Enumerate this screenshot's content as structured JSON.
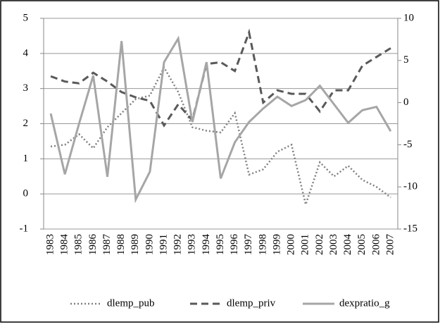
{
  "chart_data": {
    "type": "line",
    "categories": [
      "1983",
      "1984",
      "1985",
      "1986",
      "1987",
      "1988",
      "1989",
      "1990",
      "1991",
      "1992",
      "1993",
      "1994",
      "1995",
      "1996",
      "1997",
      "1998",
      "1999",
      "2000",
      "2001",
      "2002",
      "2003",
      "2004",
      "2005",
      "2006",
      "2007"
    ],
    "series": [
      {
        "name": "dlemp_pub",
        "color": "#808080",
        "dash": "dotted",
        "values": [
          1.35,
          1.4,
          1.7,
          1.3,
          1.9,
          2.3,
          2.7,
          2.8,
          3.6,
          2.9,
          1.9,
          1.8,
          1.75,
          2.3,
          0.55,
          0.7,
          1.2,
          1.4,
          -0.3,
          0.9,
          0.5,
          0.8,
          0.4,
          0.2,
          -0.1
        ]
      },
      {
        "name": "dlemp_priv",
        "color": "#595959",
        "dash": "dashed",
        "values": [
          3.35,
          3.2,
          3.15,
          3.45,
          3.2,
          2.9,
          2.75,
          2.65,
          1.95,
          2.55,
          2.1,
          3.7,
          3.75,
          3.5,
          4.6,
          2.6,
          2.95,
          2.85,
          2.85,
          2.35,
          2.95,
          2.95,
          3.65,
          3.9,
          4.15
        ]
      },
      {
        "name": "dexpratio_g",
        "color": "#a6a6a6",
        "dash": "solid",
        "axis": "y2",
        "values": [
          -1.3,
          -8.5,
          -2.5,
          3.2,
          -8.8,
          7.3,
          -11.5,
          -8.2,
          4.8,
          7.6,
          -2.3,
          4.8,
          -9.0,
          -4.7,
          -2.3,
          -0.7,
          0.7,
          -0.4,
          0.3,
          2.0,
          -0.2,
          -2.4,
          -0.9,
          -0.5,
          -3.4
        ]
      }
    ],
    "ylim": [
      -1,
      5
    ],
    "yticks": [
      -1,
      0,
      1,
      2,
      3,
      4,
      5
    ],
    "y2lim": [
      -15,
      10
    ],
    "y2ticks": [
      -15,
      -10,
      -5,
      0,
      5,
      10
    ],
    "grid": true,
    "legend": "bottom"
  }
}
